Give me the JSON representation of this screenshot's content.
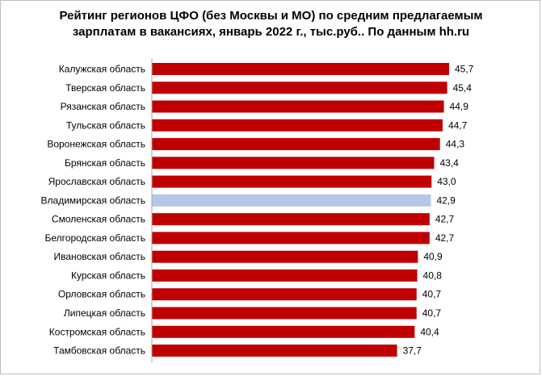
{
  "chart_data": {
    "type": "bar",
    "orientation": "horizontal",
    "title_line1": "Рейтинг регионов ЦФО (без Москвы и МО) по средним предлагаемым",
    "title_line2": "зарплатам в вакансиях, январь 2022 г., тыс.руб.. По данным hh.ru",
    "categories": [
      "Калужская область",
      "Тверская область",
      "Рязанская область",
      "Тульская область",
      "Воронежская область",
      "Брянская область",
      "Ярославская область",
      "Владимирская область",
      "Смоленская область",
      "Белгородская область",
      "Ивановская область",
      "Курская область",
      "Орловская область",
      "Липецкая область",
      "Костромская область",
      "Тамбовская область"
    ],
    "values": [
      45.7,
      45.4,
      44.9,
      44.7,
      44.3,
      43.4,
      43.0,
      42.9,
      42.7,
      42.7,
      40.9,
      40.8,
      40.7,
      40.7,
      40.4,
      37.7
    ],
    "value_labels": [
      "45,7",
      "45,4",
      "44,9",
      "44,7",
      "44,3",
      "43,4",
      "43,0",
      "42,9",
      "42,7",
      "42,7",
      "40,9",
      "40,8",
      "40,7",
      "40,7",
      "40,4",
      "37,7"
    ],
    "highlight_category": "Владимирская область",
    "xlim": [
      0,
      45.7
    ],
    "grid": false,
    "legend": "none",
    "colors": {
      "bar": "#c00000",
      "highlight": "#b4c7e7",
      "axis": "#a6a6a6"
    }
  }
}
